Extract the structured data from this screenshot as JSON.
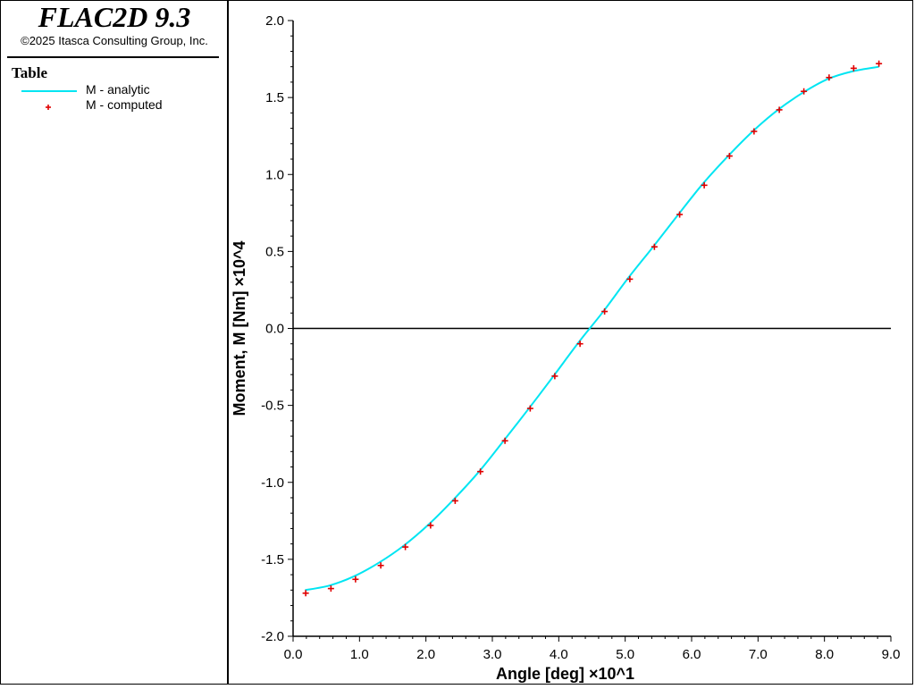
{
  "app": {
    "title": "FLAC2D 9.3",
    "copyright": "©2025 Itasca Consulting Group, Inc."
  },
  "legend": {
    "title": "Table",
    "items": [
      {
        "label": "M - analytic",
        "kind": "line",
        "color": "#00e5f2"
      },
      {
        "label": "M - computed",
        "kind": "marker",
        "color": "#e00000"
      }
    ]
  },
  "chart_data": {
    "type": "line",
    "title": "",
    "xlabel": "Angle [deg] ×10^1",
    "ylabel": "Moment, M [Nm] ×10^4",
    "xlim": [
      0,
      9
    ],
    "ylim": [
      -2,
      2
    ],
    "x_ticks": [
      "0.0",
      "1.0",
      "2.0",
      "3.0",
      "4.0",
      "5.0",
      "6.0",
      "7.0",
      "8.0",
      "9.0"
    ],
    "y_ticks": [
      "2.0",
      "1.5",
      "1.0",
      "0.5",
      "0.0",
      "-0.5",
      "-1.0",
      "-1.5",
      "-2.0"
    ],
    "zero_line": true,
    "grid": false,
    "legend_position": "left panel",
    "series": [
      {
        "name": "M - analytic",
        "style": "line",
        "color": "#00e5f2",
        "x": [
          0.18,
          0.55,
          0.92,
          1.3,
          1.67,
          2.05,
          2.42,
          2.8,
          3.17,
          3.55,
          3.92,
          4.3,
          4.67,
          5.05,
          5.42,
          5.8,
          6.17,
          6.55,
          6.92,
          7.3,
          7.67,
          8.05,
          8.42,
          8.82
        ],
        "y": [
          -1.7,
          -1.67,
          -1.61,
          -1.52,
          -1.41,
          -1.27,
          -1.11,
          -0.93,
          -0.73,
          -0.52,
          -0.31,
          -0.09,
          0.11,
          0.33,
          0.53,
          0.74,
          0.94,
          1.12,
          1.28,
          1.42,
          1.53,
          1.62,
          1.67,
          1.7
        ]
      },
      {
        "name": "M - computed",
        "style": "marker",
        "marker": "+",
        "color": "#e00000",
        "x": [
          0.19,
          0.57,
          0.94,
          1.32,
          1.69,
          2.07,
          2.44,
          2.82,
          3.19,
          3.57,
          3.94,
          4.32,
          4.69,
          5.07,
          5.44,
          5.82,
          6.19,
          6.57,
          6.94,
          7.32,
          7.69,
          8.07,
          8.44,
          8.82
        ],
        "y": [
          -1.72,
          -1.69,
          -1.63,
          -1.54,
          -1.42,
          -1.28,
          -1.12,
          -0.93,
          -0.73,
          -0.52,
          -0.31,
          -0.1,
          0.11,
          0.32,
          0.53,
          0.74,
          0.93,
          1.12,
          1.28,
          1.42,
          1.54,
          1.63,
          1.69,
          1.72
        ]
      }
    ]
  }
}
